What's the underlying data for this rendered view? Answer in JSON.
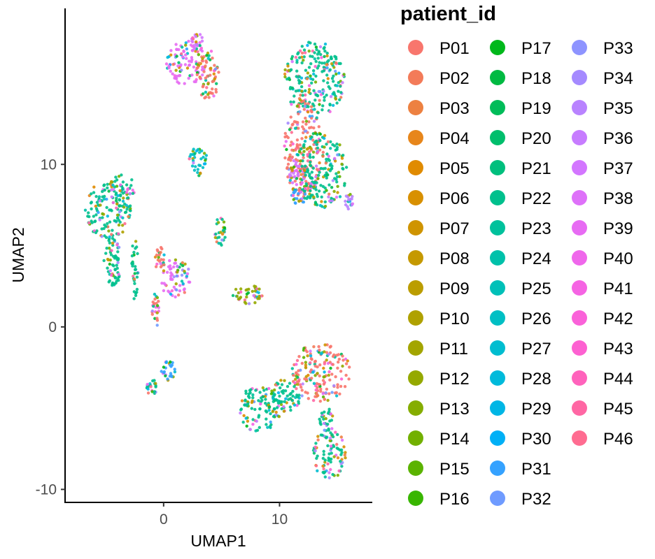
{
  "chart_data": {
    "type": "scatter",
    "xlabel": "UMAP1",
    "ylabel": "UMAP2",
    "xlim": [
      -8.5,
      18
    ],
    "ylim": [
      -10.8,
      19.6
    ],
    "x_ticks": [
      0,
      10
    ],
    "x_tick_labels": [
      "0",
      "10"
    ],
    "y_ticks": [
      -10,
      0,
      10
    ],
    "y_tick_labels": [
      "-10",
      "0",
      "10"
    ],
    "grid": false,
    "legend_title": "patient_id",
    "legend_position": "right",
    "legend_columns": 3,
    "series": [
      {
        "name": "P01",
        "color": "#F8766D"
      },
      {
        "name": "P02",
        "color": "#F37B59"
      },
      {
        "name": "P03",
        "color": "#ED8141"
      },
      {
        "name": "P04",
        "color": "#E7861B"
      },
      {
        "name": "P05",
        "color": "#E08B00"
      },
      {
        "name": "P06",
        "color": "#D89000"
      },
      {
        "name": "P07",
        "color": "#CF9400"
      },
      {
        "name": "P08",
        "color": "#C59900"
      },
      {
        "name": "P09",
        "color": "#BB9D00"
      },
      {
        "name": "P10",
        "color": "#AFA100"
      },
      {
        "name": "P11",
        "color": "#A3A500"
      },
      {
        "name": "P12",
        "color": "#95A900"
      },
      {
        "name": "P13",
        "color": "#85AD00"
      },
      {
        "name": "P14",
        "color": "#72B000"
      },
      {
        "name": "P15",
        "color": "#5BB300"
      },
      {
        "name": "P16",
        "color": "#39B600"
      },
      {
        "name": "P17",
        "color": "#00B81B"
      },
      {
        "name": "P18",
        "color": "#00BA42"
      },
      {
        "name": "P19",
        "color": "#00BC59"
      },
      {
        "name": "P20",
        "color": "#00BE6C"
      },
      {
        "name": "P21",
        "color": "#00BF7D"
      },
      {
        "name": "P22",
        "color": "#00C08D"
      },
      {
        "name": "P23",
        "color": "#00C19C"
      },
      {
        "name": "P24",
        "color": "#00C1AA"
      },
      {
        "name": "P25",
        "color": "#00C0B8"
      },
      {
        "name": "P26",
        "color": "#00BFC4"
      },
      {
        "name": "P27",
        "color": "#00BDD0"
      },
      {
        "name": "P28",
        "color": "#00BADB"
      },
      {
        "name": "P29",
        "color": "#00B6E5"
      },
      {
        "name": "P30",
        "color": "#00B0F6"
      },
      {
        "name": "P31",
        "color": "#35A2FF"
      },
      {
        "name": "P32",
        "color": "#6F9BFF"
      },
      {
        "name": "P33",
        "color": "#8E94FF"
      },
      {
        "name": "P34",
        "color": "#A58AFF"
      },
      {
        "name": "P35",
        "color": "#B983FF"
      },
      {
        "name": "P36",
        "color": "#C77CFF"
      },
      {
        "name": "P37",
        "color": "#D376FF"
      },
      {
        "name": "P38",
        "color": "#DE71F9"
      },
      {
        "name": "P39",
        "color": "#E76BF3"
      },
      {
        "name": "P40",
        "color": "#EF67EB"
      },
      {
        "name": "P41",
        "color": "#F564E3"
      },
      {
        "name": "P42",
        "color": "#FA62D9"
      },
      {
        "name": "P43",
        "color": "#FD61D1"
      },
      {
        "name": "P44",
        "color": "#FF63BC"
      },
      {
        "name": "P45",
        "color": "#FF67A4"
      },
      {
        "name": "P46",
        "color": "#FF6C91"
      }
    ],
    "clusters": [
      {
        "cx": 2.0,
        "cy": 16.2,
        "rx": 1.8,
        "ry": 1.4,
        "tint": "#E76BF3"
      },
      {
        "cx": 3.8,
        "cy": 15.5,
        "rx": 1.0,
        "ry": 1.6,
        "tint": "#F8766D"
      },
      {
        "cx": 2.9,
        "cy": 17.6,
        "rx": 0.5,
        "ry": 0.6,
        "tint": "#D376FF"
      },
      {
        "cx": 3.0,
        "cy": 10.2,
        "rx": 0.8,
        "ry": 0.9,
        "tint": "#00BFC4"
      },
      {
        "cx": 4.9,
        "cy": 5.9,
        "rx": 0.5,
        "ry": 0.9,
        "tint": "#00C08D"
      },
      {
        "cx": 13.0,
        "cy": 15.2,
        "rx": 2.6,
        "ry": 2.4,
        "tint": "#00C08D"
      },
      {
        "cx": 12.0,
        "cy": 11.0,
        "rx": 1.6,
        "ry": 3.0,
        "tint": "#F8766D"
      },
      {
        "cx": 13.6,
        "cy": 9.6,
        "rx": 2.2,
        "ry": 2.4,
        "tint": "#00C08D"
      },
      {
        "cx": 11.5,
        "cy": 9.5,
        "rx": 0.8,
        "ry": 0.8,
        "tint": "#D376FF"
      },
      {
        "cx": 11.7,
        "cy": 8.2,
        "rx": 0.7,
        "ry": 0.7,
        "tint": "#35A2FF"
      },
      {
        "cx": 16.0,
        "cy": 7.7,
        "rx": 0.4,
        "ry": 0.5,
        "tint": "#B983FF"
      },
      {
        "cx": -4.8,
        "cy": 7.2,
        "rx": 2.0,
        "ry": 1.8,
        "tint": "#00C08D"
      },
      {
        "cx": -3.6,
        "cy": 8.6,
        "rx": 1.2,
        "ry": 0.8,
        "tint": "#00C08D"
      },
      {
        "cx": -4.5,
        "cy": 4.5,
        "rx": 0.8,
        "ry": 1.2,
        "tint": "#00C08D"
      },
      {
        "cx": -4.3,
        "cy": 3.0,
        "rx": 0.5,
        "ry": 0.5,
        "tint": "#00C08D"
      },
      {
        "cx": -2.5,
        "cy": 3.5,
        "rx": 0.3,
        "ry": 2.0,
        "tint": "#00C08D"
      },
      {
        "cx": 1.0,
        "cy": 3.0,
        "rx": 1.3,
        "ry": 1.2,
        "tint": "#E76BF3"
      },
      {
        "cx": -0.3,
        "cy": 4.2,
        "rx": 0.5,
        "ry": 0.7,
        "tint": "#F8766D"
      },
      {
        "cx": -0.7,
        "cy": 1.0,
        "rx": 0.3,
        "ry": 1.2,
        "tint": "#F8766D"
      },
      {
        "cx": 7.2,
        "cy": 2.0,
        "rx": 1.4,
        "ry": 0.6,
        "tint": "#95A900"
      },
      {
        "cx": 0.5,
        "cy": -2.7,
        "rx": 0.7,
        "ry": 0.6,
        "tint": "#35A2FF"
      },
      {
        "cx": -1.0,
        "cy": -3.8,
        "rx": 0.5,
        "ry": 0.6,
        "tint": "#00C08D"
      },
      {
        "cx": 13.5,
        "cy": -2.8,
        "rx": 2.6,
        "ry": 1.8,
        "tint": "#F8766D"
      },
      {
        "cx": 8.3,
        "cy": -5.0,
        "rx": 1.8,
        "ry": 1.5,
        "tint": "#00C08D"
      },
      {
        "cx": 10.5,
        "cy": -4.2,
        "rx": 1.4,
        "ry": 1.0,
        "tint": "#00C08D"
      },
      {
        "cx": 14.3,
        "cy": -7.8,
        "rx": 1.4,
        "ry": 1.6,
        "tint": "#00C08D"
      },
      {
        "cx": 14.0,
        "cy": -5.7,
        "rx": 0.6,
        "ry": 0.8,
        "tint": "#00C08D"
      }
    ]
  }
}
